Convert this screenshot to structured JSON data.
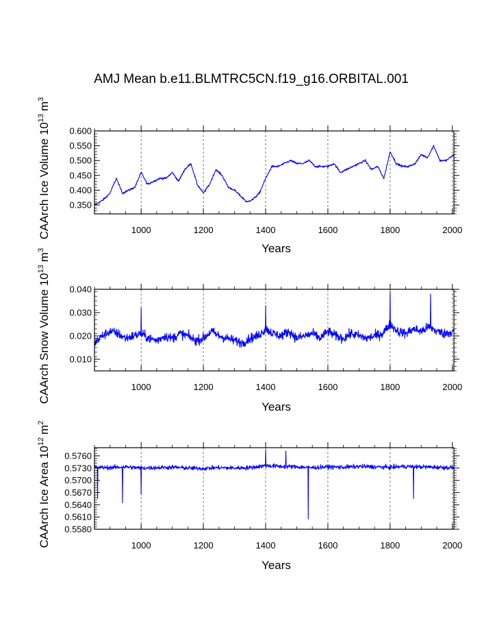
{
  "figure_title": "AMJ Mean b.e11.BLMTRC5CN.f19_g16.ORBITAL.001",
  "colors": {
    "series": "#0000ff",
    "axes": "#000000",
    "grid": "#555555"
  },
  "chart_data": [
    {
      "type": "line",
      "name": "CAArch Ice Volume",
      "xlabel": "Years",
      "ylabel_main": "CAArch Ice Volume 10",
      "ylabel_exp": "13",
      "ylabel_unit": "m",
      "ylabel_unit_exp": "3",
      "xlim": [
        850,
        2005
      ],
      "ylim": [
        0.32,
        0.6
      ],
      "xticks": [
        1000,
        1200,
        1400,
        1600,
        1800,
        2000
      ],
      "xtick_labels": [
        "1000",
        "1200",
        "1400",
        "1600",
        "1800",
        "2000"
      ],
      "yticks": [
        0.35,
        0.4,
        0.45,
        0.5,
        0.55,
        0.6
      ],
      "ytick_labels": [
        "0.350",
        "0.400",
        "0.450",
        "0.500",
        "0.550",
        "0.600"
      ],
      "grid_x_dashed": true,
      "series_color": "#0000ff",
      "x": [
        850,
        875,
        900,
        920,
        940,
        960,
        980,
        1000,
        1010,
        1020,
        1040,
        1060,
        1080,
        1100,
        1120,
        1140,
        1160,
        1180,
        1200,
        1220,
        1240,
        1260,
        1280,
        1300,
        1320,
        1340,
        1360,
        1380,
        1400,
        1420,
        1440,
        1460,
        1480,
        1500,
        1520,
        1540,
        1560,
        1580,
        1600,
        1620,
        1640,
        1660,
        1680,
        1700,
        1720,
        1740,
        1760,
        1780,
        1800,
        1820,
        1840,
        1860,
        1880,
        1900,
        1920,
        1940,
        1960,
        1980,
        2005
      ],
      "values": [
        0.35,
        0.365,
        0.39,
        0.44,
        0.39,
        0.4,
        0.41,
        0.46,
        0.44,
        0.42,
        0.43,
        0.44,
        0.44,
        0.46,
        0.43,
        0.47,
        0.49,
        0.42,
        0.39,
        0.42,
        0.47,
        0.45,
        0.41,
        0.4,
        0.38,
        0.36,
        0.37,
        0.39,
        0.44,
        0.48,
        0.48,
        0.49,
        0.5,
        0.49,
        0.49,
        0.5,
        0.48,
        0.48,
        0.48,
        0.49,
        0.46,
        0.47,
        0.48,
        0.49,
        0.5,
        0.47,
        0.48,
        0.44,
        0.53,
        0.49,
        0.48,
        0.48,
        0.49,
        0.52,
        0.51,
        0.55,
        0.5,
        0.5,
        0.52
      ]
    },
    {
      "type": "line",
      "name": "CAArch Snow Volume",
      "xlabel": "Years",
      "ylabel_main": "CAArch Snow Volume 10",
      "ylabel_exp": "13",
      "ylabel_unit": "m",
      "ylabel_unit_exp": "3",
      "xlim": [
        850,
        2005
      ],
      "ylim": [
        0.005,
        0.04
      ],
      "xticks": [
        1000,
        1200,
        1400,
        1600,
        1800,
        2000
      ],
      "xtick_labels": [
        "1000",
        "1200",
        "1400",
        "1600",
        "1800",
        "2000"
      ],
      "yticks": [
        0.01,
        0.02,
        0.03,
        0.04
      ],
      "ytick_labels": [
        "0.010",
        "0.020",
        "0.030",
        "0.040"
      ],
      "grid_x_dashed": true,
      "series_color": "#0000ff",
      "x": [
        850,
        875,
        900,
        925,
        950,
        975,
        1000,
        1025,
        1050,
        1075,
        1100,
        1125,
        1150,
        1175,
        1200,
        1225,
        1250,
        1275,
        1300,
        1325,
        1350,
        1375,
        1400,
        1425,
        1450,
        1475,
        1500,
        1525,
        1550,
        1575,
        1600,
        1625,
        1650,
        1675,
        1700,
        1725,
        1750,
        1775,
        1800,
        1825,
        1850,
        1875,
        1900,
        1925,
        1950,
        1975,
        2005
      ],
      "values": [
        0.017,
        0.02,
        0.022,
        0.021,
        0.019,
        0.02,
        0.021,
        0.019,
        0.018,
        0.02,
        0.019,
        0.021,
        0.02,
        0.018,
        0.019,
        0.022,
        0.02,
        0.019,
        0.018,
        0.017,
        0.019,
        0.02,
        0.023,
        0.021,
        0.02,
        0.022,
        0.019,
        0.02,
        0.021,
        0.019,
        0.022,
        0.02,
        0.019,
        0.021,
        0.02,
        0.019,
        0.02,
        0.021,
        0.025,
        0.022,
        0.021,
        0.023,
        0.022,
        0.024,
        0.022,
        0.021,
        0.022
      ],
      "annotations": [
        {
          "x": 1800,
          "value": 0.039
        },
        {
          "x": 1400,
          "value": 0.033
        },
        {
          "x": 1930,
          "value": 0.038
        },
        {
          "x": 1000,
          "value": 0.032
        }
      ]
    },
    {
      "type": "line",
      "name": "CAArch Ice Area",
      "xlabel": "Years",
      "ylabel_main": "CAArch Ice Area 10",
      "ylabel_exp": "12",
      "ylabel_unit": "m",
      "ylabel_unit_exp": "2",
      "xlim": [
        850,
        2005
      ],
      "ylim": [
        0.558,
        0.578
      ],
      "xticks": [
        1000,
        1200,
        1400,
        1600,
        1800,
        2000
      ],
      "xtick_labels": [
        "1000",
        "1200",
        "1400",
        "1600",
        "1800",
        "2000"
      ],
      "yticks": [
        0.558,
        0.561,
        0.564,
        0.567,
        0.57,
        0.573,
        0.576
      ],
      "ytick_labels": [
        "0.5580",
        "0.5610",
        "0.5640",
        "0.5670",
        "0.5700",
        "0.5730",
        "0.5760"
      ],
      "grid_x_dashed": true,
      "series_color": "#0000ff",
      "x": [
        850,
        900,
        950,
        1000,
        1050,
        1100,
        1150,
        1200,
        1250,
        1300,
        1350,
        1400,
        1450,
        1500,
        1550,
        1600,
        1650,
        1700,
        1750,
        1800,
        1850,
        1900,
        1950,
        2005
      ],
      "values": [
        0.5732,
        0.5731,
        0.5733,
        0.573,
        0.5731,
        0.5732,
        0.573,
        0.5729,
        0.5731,
        0.573,
        0.5731,
        0.5736,
        0.5734,
        0.5733,
        0.5731,
        0.5733,
        0.5732,
        0.5734,
        0.5733,
        0.5732,
        0.5734,
        0.5733,
        0.5732,
        0.5731
      ],
      "annotations": [
        {
          "x": 1537,
          "value": 0.5605
        },
        {
          "x": 940,
          "value": 0.5645
        },
        {
          "x": 1875,
          "value": 0.5655
        },
        {
          "x": 1000,
          "value": 0.5665
        },
        {
          "x": 860,
          "value": 0.5655
        },
        {
          "x": 1400,
          "value": 0.5775
        },
        {
          "x": 1465,
          "value": 0.5772
        }
      ]
    }
  ]
}
